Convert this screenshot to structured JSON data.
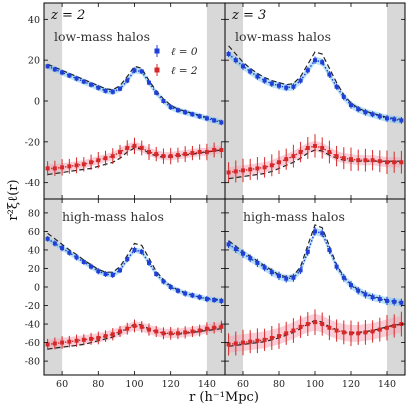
{
  "chart_data": {
    "type": "scatter",
    "ylabel": "r²ξℓ(r)",
    "xlabel": "r (h⁻¹Mpc)",
    "legend": {
      "placement": "top-right",
      "entries": [
        {
          "label": "ℓ = 0",
          "color": "#1f3fd6"
        },
        {
          "label": "ℓ = 2",
          "color": "#d62828"
        }
      ]
    },
    "colors": {
      "monopole": "#1f3fd6",
      "quadrupole": "#d62828",
      "monopole_band": "#7fc8f0",
      "quadrupole_band": "#f4a6b6",
      "dashed": "#222222",
      "shade": "#d8d8d8"
    },
    "shaded_ranges": [
      [
        50,
        60
      ],
      [
        140,
        150
      ]
    ],
    "x": [
      52,
      56,
      60,
      64,
      68,
      72,
      76,
      80,
      84,
      88,
      92,
      96,
      100,
      104,
      108,
      112,
      116,
      120,
      124,
      128,
      132,
      136,
      140,
      144,
      148
    ],
    "panels": [
      {
        "id": "top-left",
        "title": "z = 2",
        "label": "low-mass halos",
        "xlim": [
          50,
          150
        ],
        "ylim": [
          -48,
          48
        ],
        "yticks": [
          -40,
          -20,
          0,
          20,
          40
        ],
        "show_legend": true,
        "monopole": {
          "y": [
            17,
            15.5,
            14,
            12.5,
            11,
            9.5,
            8,
            6.5,
            5,
            4.5,
            6,
            10,
            15,
            14.5,
            9,
            4,
            0,
            -3,
            -4.5,
            -5.5,
            -6.5,
            -7.5,
            -8.5,
            -9.5,
            -10.5
          ],
          "err": 1.2,
          "band": 1.5,
          "dashed": [
            18,
            16.5,
            15,
            13.5,
            12,
            10.5,
            9,
            7.5,
            6,
            5.5,
            7.5,
            12,
            17,
            16,
            10,
            5,
            1,
            -2,
            -4,
            -5,
            -6,
            -7,
            -8,
            -9,
            -10
          ]
        },
        "quadrupole": {
          "y": [
            -33,
            -33,
            -32.5,
            -32,
            -31.5,
            -31,
            -30,
            -29,
            -28,
            -27,
            -25,
            -23,
            -22,
            -23,
            -25,
            -26,
            -27,
            -27,
            -26.5,
            -26,
            -25.5,
            -25,
            -25,
            -24,
            -24
          ],
          "err": 3.5,
          "band": 2,
          "dashed": [
            -36,
            -35.5,
            -35,
            -34.5,
            -34,
            -33.5,
            -33,
            -32,
            -31,
            -30,
            -28,
            -25,
            -23,
            -23.5,
            -25.5,
            -27,
            -27.5,
            -27.5,
            -27,
            -26.5,
            -26,
            -25.5,
            -25,
            -24.5,
            -24
          ]
        }
      },
      {
        "id": "top-right",
        "title": "z = 3",
        "label": "low-mass halos",
        "xlim": [
          50,
          150
        ],
        "ylim": [
          -48,
          48
        ],
        "yticks": [
          -40,
          -20,
          0,
          20,
          40
        ],
        "show_legend": false,
        "monopole": {
          "y": [
            23,
            20,
            17,
            14.5,
            12,
            10,
            8.5,
            7.5,
            6.5,
            7,
            10,
            15,
            20,
            19,
            13,
            7,
            2,
            -2,
            -4,
            -5.5,
            -6.5,
            -7.5,
            -8.5,
            -9,
            -9.5
          ],
          "err": 1.5,
          "band": 1.8,
          "dashed": [
            27,
            23,
            19,
            16,
            13.5,
            11.5,
            10,
            9,
            8,
            8.5,
            12,
            18,
            24,
            23,
            16,
            9,
            3,
            -1,
            -3.5,
            -5,
            -6,
            -7,
            -8,
            -8.5,
            -9
          ]
        },
        "quadrupole": {
          "y": [
            -35,
            -34.5,
            -34,
            -33.5,
            -33,
            -32.5,
            -31.5,
            -30,
            -28.5,
            -27,
            -25,
            -23,
            -22,
            -23,
            -25,
            -27,
            -28,
            -28.5,
            -29,
            -29,
            -29,
            -29.5,
            -30,
            -30,
            -30
          ],
          "err": 5,
          "band": 2.5,
          "dashed": [
            -38,
            -37.5,
            -37,
            -36.5,
            -36,
            -35.5,
            -34.5,
            -33,
            -31.5,
            -30,
            -28,
            -25.5,
            -24,
            -24.5,
            -26.5,
            -28,
            -29,
            -29.5,
            -29.5,
            -29.5,
            -29.5,
            -29.5,
            -29.5,
            -29.5,
            -29.5
          ]
        }
      },
      {
        "id": "bottom-left",
        "title": "",
        "label": "high-mass halos",
        "xlim": [
          50,
          150
        ],
        "ylim": [
          -95,
          95
        ],
        "yticks": [
          -80,
          -60,
          -40,
          -20,
          0,
          20,
          40,
          60,
          80
        ],
        "show_legend": false,
        "monopole": {
          "y": [
            52,
            47,
            42,
            37,
            32,
            27,
            22,
            17,
            14,
            13,
            18,
            30,
            40,
            38,
            26,
            14,
            6,
            0,
            -4,
            -7,
            -9,
            -11,
            -13,
            -14,
            -15
          ],
          "err": 3,
          "band": 3,
          "dashed": [
            58,
            52,
            46,
            40,
            35,
            29,
            24,
            19,
            16,
            16,
            22,
            34,
            47,
            45,
            31,
            17,
            8,
            1,
            -3,
            -6,
            -9,
            -11,
            -12,
            -13,
            -14
          ]
        },
        "quadrupole": {
          "y": [
            -62,
            -61,
            -60,
            -59,
            -58,
            -57,
            -56,
            -55,
            -53,
            -51,
            -48,
            -45,
            -42,
            -43,
            -46,
            -48,
            -50,
            -50,
            -50,
            -49,
            -48,
            -47,
            -45,
            -44,
            -43
          ],
          "err": 6,
          "band": 5,
          "dashed": [
            -67,
            -66,
            -65,
            -64,
            -63,
            -62,
            -60,
            -58,
            -56,
            -54,
            -50,
            -45,
            -40,
            -41,
            -45,
            -48,
            -50,
            -51,
            -51,
            -50,
            -49,
            -48,
            -47,
            -46,
            -45
          ]
        }
      },
      {
        "id": "bottom-right",
        "title": "",
        "label": "high-mass halos",
        "xlim": [
          50,
          150
        ],
        "ylim": [
          -95,
          95
        ],
        "yticks": [
          -80,
          -60,
          -40,
          -20,
          0,
          20,
          40,
          60,
          80
        ],
        "show_legend": false,
        "monopole": {
          "y": [
            46,
            41,
            36,
            31,
            26,
            21,
            16,
            12,
            9,
            10,
            18,
            38,
            60,
            58,
            40,
            22,
            10,
            2,
            -4,
            -8,
            -11,
            -13,
            -15,
            -16,
            -17
          ],
          "err": 4,
          "band": 4,
          "dashed": [
            50,
            44,
            38,
            33,
            28,
            23,
            18,
            13,
            11,
            12,
            22,
            45,
            67,
            64,
            44,
            24,
            11,
            3,
            -3,
            -7,
            -10,
            -12,
            -14,
            -15,
            -16
          ]
        },
        "quadrupole": {
          "y": [
            -62,
            -61,
            -60,
            -59,
            -58,
            -57,
            -55,
            -53,
            -50,
            -47,
            -43,
            -40,
            -38,
            -40,
            -44,
            -47,
            -49,
            -50,
            -50,
            -49,
            -48,
            -46,
            -44,
            -42,
            -40
          ],
          "err": 12,
          "band": 9,
          "dashed": [
            -64,
            -63,
            -62,
            -61,
            -60,
            -59,
            -57,
            -55,
            -52,
            -49,
            -45,
            -40,
            -36,
            -38,
            -43,
            -46,
            -48,
            -49,
            -49,
            -48,
            -47,
            -45,
            -43,
            -41,
            -40
          ]
        }
      }
    ],
    "xticks": [
      60,
      80,
      100,
      120,
      140
    ]
  }
}
